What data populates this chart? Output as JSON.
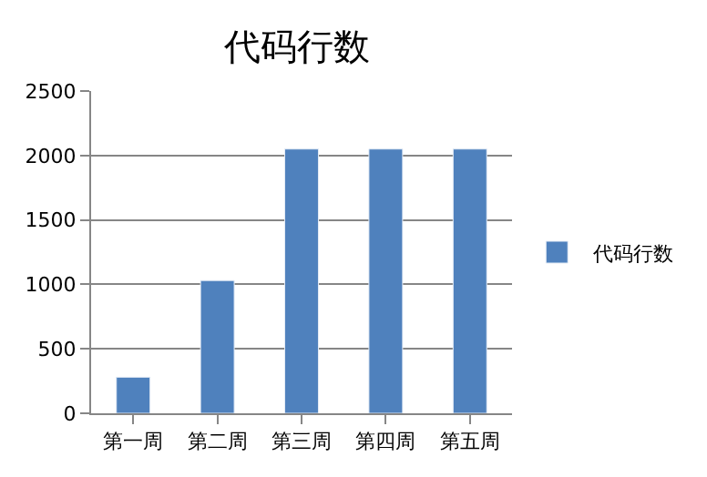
{
  "chart_data": {
    "type": "bar",
    "title": "代码行数",
    "categories": [
      "第一周",
      "第二周",
      "第三周",
      "第四周",
      "第五周"
    ],
    "series": [
      {
        "name": "代码行数",
        "color": "#4f81bd",
        "values": [
          280,
          1030,
          2050,
          2050,
          2050
        ]
      }
    ],
    "ylim": [
      0,
      2500
    ],
    "yticks": [
      0,
      500,
      1000,
      1500,
      2000,
      2500
    ],
    "grid": "y",
    "legend": "right"
  }
}
